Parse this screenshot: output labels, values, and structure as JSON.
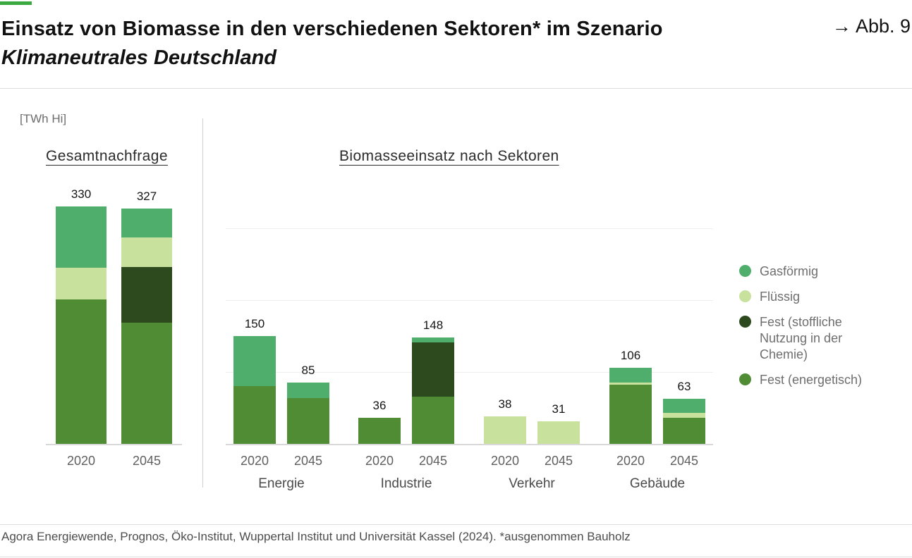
{
  "header": {
    "title_line1": "Einsatz von Biomasse in den verschiedenen Sektoren* im Szenario",
    "title_line2": "Klimaneutrales Deutschland",
    "fig_arrow": "→",
    "fig_label": "Abb. 9"
  },
  "footer": {
    "source": "Agora Energiewende, Prognos, Öko-Institut, Wuppertal Institut und Universität Kassel (2024). *ausgenommen Bauholz"
  },
  "colors": {
    "accent": "#3aa93f"
  },
  "chart_data": {
    "type": "bar",
    "stacked": true,
    "ylabel": "[TWh Hi]",
    "ylim": [
      0,
      340
    ],
    "gridlines": [
      100,
      200,
      300
    ],
    "grid": "horizontal, right panel only",
    "legend_position": "right",
    "stack_order_bottom_to_top": [
      "fest_energetisch",
      "fest_stofflich",
      "fluessig",
      "gas"
    ],
    "legend": [
      {
        "key": "gas",
        "label": "Gasförmig",
        "color": "#4fae6b"
      },
      {
        "key": "fluessig",
        "label": "Flüssig",
        "color": "#c8e29e"
      },
      {
        "key": "fest_stofflich",
        "label": "Fest (stoffliche Nutzung in der Chemie)",
        "color": "#2c4a1d"
      },
      {
        "key": "fest_energetisch",
        "label": "Fest (energetisch)",
        "color": "#4f8c33"
      }
    ],
    "panels": [
      {
        "heading": "Gesamtnachfrage",
        "groups": [
          {
            "label": "",
            "bars": [
              {
                "x_label": "2020",
                "total": 330,
                "segments": {
                  "fest_energetisch": 201,
                  "fluessig": 44,
                  "gas": 85
                }
              },
              {
                "x_label": "2045",
                "total": 327,
                "segments": {
                  "fest_energetisch": 169,
                  "fest_stofflich": 77,
                  "fluessig": 41,
                  "gas": 40
                }
              }
            ]
          }
        ]
      },
      {
        "heading": "Biomasseeinsatz nach Sektoren",
        "groups": [
          {
            "label": "Energie",
            "bars": [
              {
                "x_label": "2020",
                "total": 150,
                "segments": {
                  "fest_energetisch": 80,
                  "gas": 70
                }
              },
              {
                "x_label": "2045",
                "total": 85,
                "segments": {
                  "fest_energetisch": 64,
                  "gas": 21
                }
              }
            ]
          },
          {
            "label": "Industrie",
            "bars": [
              {
                "x_label": "2020",
                "total": 36,
                "segments": {
                  "fest_energetisch": 36
                }
              },
              {
                "x_label": "2045",
                "total": 148,
                "segments": {
                  "fest_energetisch": 66,
                  "fest_stofflich": 75,
                  "gas": 7
                }
              }
            ]
          },
          {
            "label": "Verkehr",
            "bars": [
              {
                "x_label": "2020",
                "total": 38,
                "segments": {
                  "fluessig": 38
                }
              },
              {
                "x_label": "2045",
                "total": 31,
                "segments": {
                  "fluessig": 31
                }
              }
            ]
          },
          {
            "label": "Gebäude",
            "bars": [
              {
                "x_label": "2020",
                "total": 106,
                "segments": {
                  "fest_energetisch": 82,
                  "fluessig": 3,
                  "gas": 21
                }
              },
              {
                "x_label": "2045",
                "total": 63,
                "segments": {
                  "fest_energetisch": 36,
                  "fluessig": 7,
                  "gas": 20
                }
              }
            ]
          }
        ]
      }
    ]
  }
}
